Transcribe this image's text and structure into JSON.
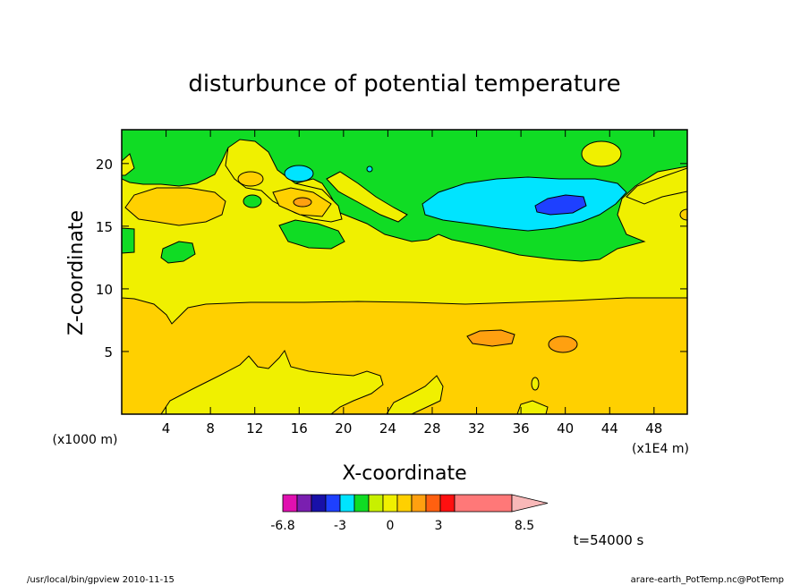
{
  "chart_data": {
    "type": "heatmap",
    "title": "disturbunce of potential temperature",
    "xlabel": "X-coordinate",
    "ylabel": "Z-coordinate",
    "x_axis_unit_note": "(x1E4 m)",
    "y_axis_unit_note": "(x1000 m)",
    "x_ticks": [
      4,
      8,
      12,
      16,
      20,
      24,
      28,
      32,
      36,
      40,
      44,
      48
    ],
    "y_ticks": [
      5,
      10,
      15,
      20
    ],
    "xlim": [
      0,
      51
    ],
    "ylim": [
      0,
      22.7
    ],
    "colorbar": {
      "tick_labels": [
        "-6.8",
        "-3",
        "0",
        "3",
        "8.5"
      ],
      "colors": [
        "#e010b0",
        "#7a1fb0",
        "#1810a8",
        "#1e40ff",
        "#00e4ff",
        "#10dc24",
        "#c8f000",
        "#f0f000",
        "#ffd000",
        "#ffa010",
        "#ff6010",
        "#ff1010",
        "#ff7878"
      ],
      "extend_max_color": "#f8b8b8"
    },
    "time_label": "t=54000 s",
    "footer_left": "/usr/local/bin/gpview  2010-11-15",
    "footer_right": "arare-earth_PotTemp.nc@PotTemp",
    "fields": {
      "background_level": "#ffd000",
      "regions": [
        {
          "level": "#f0f000",
          "desc": "mid layer z 9.5–14"
        },
        {
          "level": "#10dc24",
          "desc": "upper layer z 13–22.7"
        },
        {
          "level": "#00e4ff",
          "desc": "cold anomaly x 27–43, z 15–18"
        },
        {
          "level": "#1e40ff",
          "desc": "cold core x 37–42, z 16.5–17.5"
        },
        {
          "level": "#ffa010",
          "desc": "warm patches z ~16–18 and ~5–7"
        }
      ]
    }
  }
}
